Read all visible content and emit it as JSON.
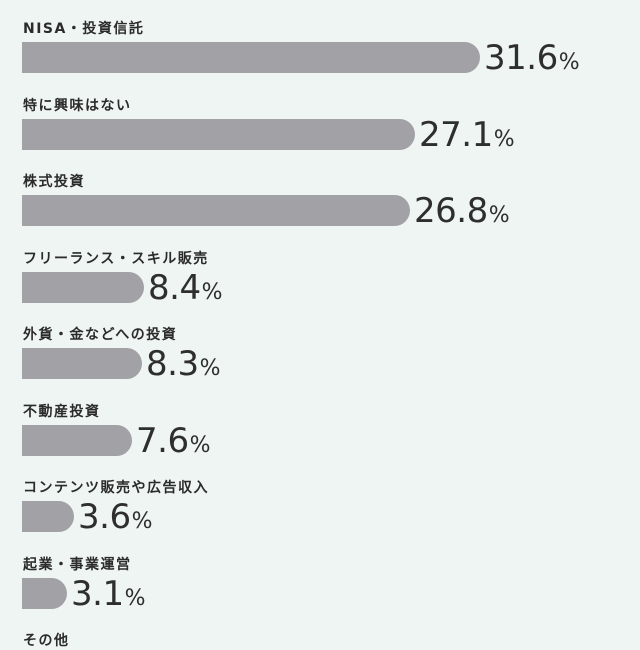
{
  "chart_data": {
    "type": "bar",
    "orientation": "horizontal",
    "categories": [
      "NISA・投資信託",
      "特に興味はない",
      "株式投資",
      "フリーランス・スキル販売",
      "外貨・金などへの投資",
      "不動産投資",
      "コンテンツ販売や広告収入",
      "起業・事業運営",
      "その他"
    ],
    "values": [
      31.6,
      27.1,
      26.8,
      8.4,
      8.3,
      7.6,
      3.6,
      3.1,
      null
    ],
    "value_labels": [
      "31.6",
      "27.1",
      "26.8",
      "8.4",
      "8.3",
      "7.6",
      "3.6",
      "3.1",
      ""
    ],
    "unit": "%",
    "bar_color": "#a1a1a6",
    "background_color": "#eef5f2",
    "xlim": [
      0,
      31.6
    ],
    "grid": false,
    "legend": "none"
  }
}
